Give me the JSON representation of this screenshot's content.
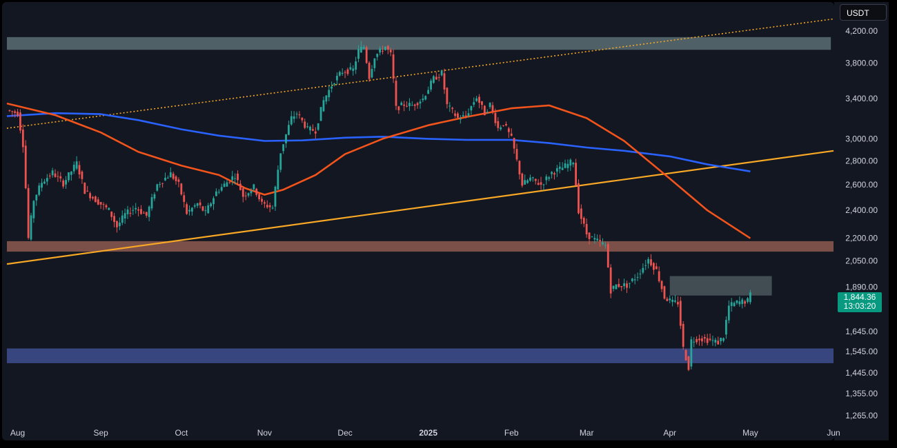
{
  "currency_selector": {
    "label": "USDT"
  },
  "last_price": {
    "value": "1,844.36",
    "countdown": "13:03:20"
  },
  "colors": {
    "background": "#131722",
    "up": "#26a69a",
    "down": "#ef5350",
    "ema_red": "#f2541b",
    "ma_blue": "#2962ff",
    "trendline": "#f9a825",
    "zone_top": "#5a6e72",
    "zone_resistance": "#8d5b4f",
    "zone_supply": "#4b575c",
    "zone_demand": "#3f4f8f"
  },
  "chart_data": {
    "type": "candlestick",
    "title": "",
    "scale": "log",
    "ylim": [
      1225,
      4450
    ],
    "y_ticks": [
      {
        "value": 4200,
        "label": "4,200.00"
      },
      {
        "value": 3800,
        "label": "3,800.00"
      },
      {
        "value": 3400,
        "label": "3,400.00"
      },
      {
        "value": 3000,
        "label": "3,000.00"
      },
      {
        "value": 2800,
        "label": "2,800.00"
      },
      {
        "value": 2600,
        "label": "2,600.00"
      },
      {
        "value": 2400,
        "label": "2,400.00"
      },
      {
        "value": 2200,
        "label": "2,200.00"
      },
      {
        "value": 2050,
        "label": "2,050.00"
      },
      {
        "value": 1890,
        "label": "1,890.00"
      },
      {
        "value": 1645,
        "label": "1,645.00"
      },
      {
        "value": 1545,
        "label": "1,545.00"
      },
      {
        "value": 1445,
        "label": "1,445.00"
      },
      {
        "value": 1355,
        "label": "1,355.00"
      },
      {
        "value": 1265,
        "label": "1,265.00"
      }
    ],
    "x_ticks": [
      {
        "label": "Aug",
        "date": "2024-08-01"
      },
      {
        "label": "Sep",
        "date": "2024-09-01"
      },
      {
        "label": "Oct",
        "date": "2024-10-01"
      },
      {
        "label": "Nov",
        "date": "2024-11-01"
      },
      {
        "label": "Dec",
        "date": "2024-12-01"
      },
      {
        "label": "2025",
        "date": "2025-01-01",
        "bold": true
      },
      {
        "label": "Feb",
        "date": "2025-02-01"
      },
      {
        "label": "Mar",
        "date": "2025-03-01"
      },
      {
        "label": "Apr",
        "date": "2025-04-01"
      },
      {
        "label": "May",
        "date": "2025-05-01"
      },
      {
        "label": "Jun",
        "date": "2025-06-01"
      }
    ],
    "price_keypoints": [
      [
        "2024-07-28",
        3280
      ],
      [
        "2024-08-01",
        3250
      ],
      [
        "2024-08-03",
        2950
      ],
      [
        "2024-08-05",
        2200
      ],
      [
        "2024-08-07",
        2480
      ],
      [
        "2024-08-10",
        2620
      ],
      [
        "2024-08-14",
        2700
      ],
      [
        "2024-08-18",
        2610
      ],
      [
        "2024-08-23",
        2780
      ],
      [
        "2024-08-26",
        2550
      ],
      [
        "2024-08-30",
        2480
      ],
      [
        "2024-09-04",
        2400
      ],
      [
        "2024-09-07",
        2280
      ],
      [
        "2024-09-10",
        2370
      ],
      [
        "2024-09-14",
        2420
      ],
      [
        "2024-09-18",
        2360
      ],
      [
        "2024-09-22",
        2600
      ],
      [
        "2024-09-27",
        2690
      ],
      [
        "2024-09-30",
        2600
      ],
      [
        "2024-10-03",
        2380
      ],
      [
        "2024-10-07",
        2450
      ],
      [
        "2024-10-10",
        2380
      ],
      [
        "2024-10-14",
        2540
      ],
      [
        "2024-10-18",
        2620
      ],
      [
        "2024-10-21",
        2680
      ],
      [
        "2024-10-24",
        2510
      ],
      [
        "2024-10-28",
        2580
      ],
      [
        "2024-10-31",
        2450
      ],
      [
        "2024-11-04",
        2420
      ],
      [
        "2024-11-07",
        2880
      ],
      [
        "2024-11-11",
        3200
      ],
      [
        "2024-11-13",
        3250
      ],
      [
        "2024-11-17",
        3090
      ],
      [
        "2024-11-20",
        3080
      ],
      [
        "2024-11-23",
        3380
      ],
      [
        "2024-11-27",
        3600
      ],
      [
        "2024-11-30",
        3700
      ],
      [
        "2024-12-04",
        3720
      ],
      [
        "2024-12-06",
        3950
      ],
      [
        "2024-12-08",
        4000
      ],
      [
        "2024-12-10",
        3640
      ],
      [
        "2024-12-12",
        3880
      ],
      [
        "2024-12-16",
        4000
      ],
      [
        "2024-12-18",
        3900
      ],
      [
        "2024-12-20",
        3300
      ],
      [
        "2024-12-23",
        3340
      ],
      [
        "2024-12-26",
        3330
      ],
      [
        "2024-12-30",
        3400
      ],
      [
        "2025-01-03",
        3620
      ],
      [
        "2025-01-06",
        3680
      ],
      [
        "2025-01-08",
        3330
      ],
      [
        "2025-01-12",
        3200
      ],
      [
        "2025-01-15",
        3220
      ],
      [
        "2025-01-19",
        3420
      ],
      [
        "2025-01-22",
        3250
      ],
      [
        "2025-01-24",
        3340
      ],
      [
        "2025-01-27",
        3100
      ],
      [
        "2025-01-29",
        3150
      ],
      [
        "2025-02-01",
        3000
      ],
      [
        "2025-02-03",
        2800
      ],
      [
        "2025-02-05",
        2600
      ],
      [
        "2025-02-08",
        2650
      ],
      [
        "2025-02-12",
        2600
      ],
      [
        "2025-02-16",
        2700
      ],
      [
        "2025-02-20",
        2740
      ],
      [
        "2025-02-24",
        2800
      ],
      [
        "2025-02-26",
        2400
      ],
      [
        "2025-03-01",
        2230
      ],
      [
        "2025-03-03",
        2200
      ],
      [
        "2025-03-05",
        2180
      ],
      [
        "2025-03-08",
        2150
      ],
      [
        "2025-03-10",
        1870
      ],
      [
        "2025-03-12",
        1900
      ],
      [
        "2025-03-16",
        1900
      ],
      [
        "2025-03-20",
        1960
      ],
      [
        "2025-03-24",
        2060
      ],
      [
        "2025-03-27",
        1990
      ],
      [
        "2025-03-30",
        1830
      ],
      [
        "2025-04-02",
        1800
      ],
      [
        "2025-04-04",
        1800
      ],
      [
        "2025-04-06",
        1560
      ],
      [
        "2025-04-08",
        1470
      ],
      [
        "2025-04-09",
        1600
      ],
      [
        "2025-04-12",
        1610
      ],
      [
        "2025-04-16",
        1600
      ],
      [
        "2025-04-19",
        1590
      ],
      [
        "2025-04-21",
        1620
      ],
      [
        "2025-04-23",
        1780
      ],
      [
        "2025-04-26",
        1800
      ],
      [
        "2025-04-30",
        1810
      ],
      [
        "2025-05-01",
        1844.36
      ]
    ],
    "ema_red_points": [
      [
        "2024-07-28",
        3350
      ],
      [
        "2024-08-15",
        3230
      ],
      [
        "2024-09-01",
        3060
      ],
      [
        "2024-09-15",
        2880
      ],
      [
        "2024-10-01",
        2760
      ],
      [
        "2024-10-15",
        2680
      ],
      [
        "2024-10-25",
        2570
      ],
      [
        "2024-11-01",
        2520
      ],
      [
        "2024-11-08",
        2560
      ],
      [
        "2024-11-20",
        2680
      ],
      [
        "2024-12-01",
        2860
      ],
      [
        "2024-12-15",
        3000
      ],
      [
        "2025-01-01",
        3130
      ],
      [
        "2025-01-15",
        3210
      ],
      [
        "2025-02-01",
        3300
      ],
      [
        "2025-02-15",
        3330
      ],
      [
        "2025-03-01",
        3200
      ],
      [
        "2025-03-15",
        2980
      ],
      [
        "2025-04-01",
        2650
      ],
      [
        "2025-04-15",
        2400
      ],
      [
        "2025-05-01",
        2200
      ]
    ],
    "ma_blue_points": [
      [
        "2024-07-28",
        3220
      ],
      [
        "2024-08-15",
        3250
      ],
      [
        "2024-09-01",
        3240
      ],
      [
        "2024-09-15",
        3180
      ],
      [
        "2024-10-01",
        3090
      ],
      [
        "2024-10-15",
        3030
      ],
      [
        "2024-11-01",
        2980
      ],
      [
        "2024-11-15",
        2985
      ],
      [
        "2024-12-01",
        3010
      ],
      [
        "2024-12-15",
        3020
      ],
      [
        "2025-01-01",
        3000
      ],
      [
        "2025-01-15",
        2990
      ],
      [
        "2025-02-01",
        2990
      ],
      [
        "2025-02-15",
        2960
      ],
      [
        "2025-03-01",
        2920
      ],
      [
        "2025-03-15",
        2890
      ],
      [
        "2025-04-01",
        2840
      ],
      [
        "2025-04-15",
        2770
      ],
      [
        "2025-05-01",
        2710
      ]
    ],
    "trendline_solid": {
      "from": [
        "2024-07-28",
        2030
      ],
      "to": [
        "2025-06-01",
        2890
      ]
    },
    "trendline_dotted": {
      "from": [
        "2024-07-28",
        3100
      ],
      "to": [
        "2025-06-01",
        4360
      ]
    },
    "zones": [
      {
        "name": "top-supply-zone",
        "from": "2024-07-28",
        "to": "2025-05-31",
        "low": 3960,
        "high": 4120,
        "color": "#5a6e72"
      },
      {
        "name": "resistance-zone",
        "from": "2024-07-28",
        "to": "2025-06-01",
        "low": 2110,
        "high": 2180,
        "color": "#8d5b4f"
      },
      {
        "name": "supply-zone",
        "from": "2025-04-01",
        "to": "2025-05-09",
        "low": 1840,
        "high": 1955,
        "color": "#4b575c"
      },
      {
        "name": "demand-zone",
        "from": "2024-07-28",
        "to": "2025-06-01",
        "low": 1490,
        "high": 1560,
        "color": "#3f4f8f"
      }
    ]
  }
}
